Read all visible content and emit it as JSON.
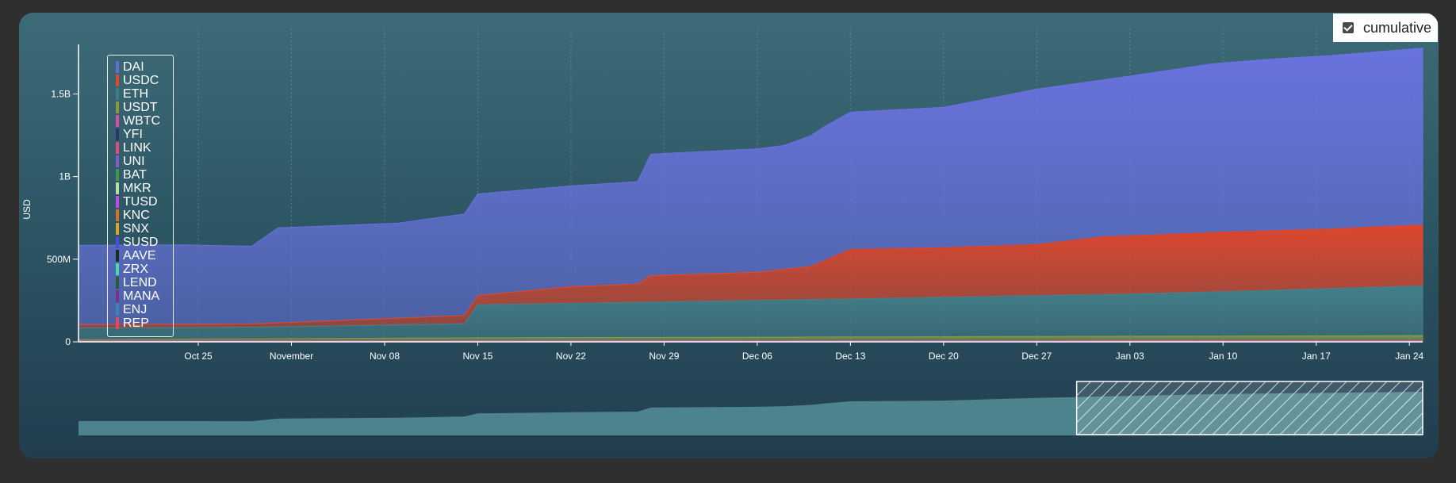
{
  "controls": {
    "cumulative_label": "cumulative",
    "cumulative_checked": true
  },
  "colors": {
    "axis": "#ffffff",
    "grid": "#8fb0b8"
  },
  "chart_data": {
    "type": "area",
    "stacked": true,
    "ylabel": "USD",
    "yticks": [
      {
        "value": 0,
        "label": "0"
      },
      {
        "value": 500000000,
        "label": "500M"
      },
      {
        "value": 1000000000,
        "label": "1B"
      },
      {
        "value": 1500000000,
        "label": "1.5B"
      }
    ],
    "ylim": [
      0,
      1800000000
    ],
    "xlim": [
      "2020-10-16",
      "2021-01-25"
    ],
    "xticks": [
      {
        "date": "2020-10-25",
        "label": "Oct 25"
      },
      {
        "date": "2020-11-01",
        "label": "November"
      },
      {
        "date": "2020-11-08",
        "label": "Nov 08"
      },
      {
        "date": "2020-11-15",
        "label": "Nov 15"
      },
      {
        "date": "2020-11-22",
        "label": "Nov 22"
      },
      {
        "date": "2020-11-29",
        "label": "Nov 29"
      },
      {
        "date": "2020-12-06",
        "label": "Dec 06"
      },
      {
        "date": "2020-12-13",
        "label": "Dec 13"
      },
      {
        "date": "2020-12-20",
        "label": "Dec 20"
      },
      {
        "date": "2020-12-27",
        "label": "Dec 27"
      },
      {
        "date": "2021-01-03",
        "label": "Jan 03"
      },
      {
        "date": "2021-01-10",
        "label": "Jan 10"
      },
      {
        "date": "2021-01-17",
        "label": "Jan 17"
      },
      {
        "date": "2021-01-24",
        "label": "Jan 24"
      }
    ],
    "grid": true,
    "legend_position": "top-left",
    "legend": [
      {
        "name": "DAI",
        "color": "#5b6fd6"
      },
      {
        "name": "USDC",
        "color": "#e0482e"
      },
      {
        "name": "ETH",
        "color": "#3f7d86"
      },
      {
        "name": "USDT",
        "color": "#8a9a3a"
      },
      {
        "name": "WBTC",
        "color": "#d44fa8"
      },
      {
        "name": "YFI",
        "color": "#2a3470"
      },
      {
        "name": "LINK",
        "color": "#d8507a"
      },
      {
        "name": "UNI",
        "color": "#7b5fc8"
      },
      {
        "name": "BAT",
        "color": "#3e9a4a"
      },
      {
        "name": "MKR",
        "color": "#b4e0a8"
      },
      {
        "name": "TUSD",
        "color": "#c24ce0"
      },
      {
        "name": "KNC",
        "color": "#c8752e"
      },
      {
        "name": "SNX",
        "color": "#d6a62c"
      },
      {
        "name": "SUSD",
        "color": "#4c4fd6"
      },
      {
        "name": "AAVE",
        "color": "#1c2a2a"
      },
      {
        "name": "ZRX",
        "color": "#4ad6b8"
      },
      {
        "name": "LEND",
        "color": "#2d5a3a"
      },
      {
        "name": "MANA",
        "color": "#7a2f8a"
      },
      {
        "name": "ENJ",
        "color": "#3a84b8"
      },
      {
        "name": "REP",
        "color": "#e04a5e"
      }
    ],
    "series": [
      {
        "name": "DAI",
        "color": "#6a72e0",
        "x": [
          "2020-10-16",
          "2020-10-24",
          "2020-10-29",
          "2020-10-31",
          "2020-11-09",
          "2020-11-14",
          "2020-11-22",
          "2020-11-27",
          "2020-11-28",
          "2020-12-08",
          "2020-12-11",
          "2020-12-13",
          "2020-12-20",
          "2020-12-27",
          "2021-01-01",
          "2021-01-09",
          "2021-01-14",
          "2021-01-18",
          "2021-01-25"
        ],
        "values": [
          480000000,
          480000000,
          470000000,
          575000000,
          575000000,
          615000000,
          610000000,
          620000000,
          735000000,
          750000000,
          810000000,
          830000000,
          850000000,
          940000000,
          950000000,
          1020000000,
          1040000000,
          1050000000,
          1070000000
        ]
      },
      {
        "name": "USDC",
        "color": "#e0462c",
        "x": [
          "2020-10-16",
          "2020-10-29",
          "2020-11-14",
          "2020-11-22",
          "2020-11-27",
          "2020-11-28",
          "2020-12-06",
          "2020-12-10",
          "2020-12-13",
          "2020-12-20",
          "2020-12-27",
          "2021-01-01",
          "2021-01-10",
          "2021-01-18",
          "2021-01-25"
        ],
        "values": [
          20000000,
          20000000,
          50000000,
          100000000,
          110000000,
          160000000,
          170000000,
          200000000,
          300000000,
          300000000,
          310000000,
          350000000,
          360000000,
          360000000,
          370000000
        ]
      },
      {
        "name": "ETH",
        "color": "#44808a",
        "x": [
          "2020-10-16",
          "2020-10-29",
          "2020-11-14",
          "2020-11-15",
          "2020-12-13",
          "2021-01-03",
          "2021-01-25"
        ],
        "values": [
          70000000,
          70000000,
          85000000,
          200000000,
          230000000,
          255000000,
          300000000
        ]
      },
      {
        "name": "USDT",
        "color": "#7e9a46",
        "x": [
          "2020-10-16",
          "2020-10-29",
          "2020-11-15",
          "2021-01-25"
        ],
        "values": [
          8000000,
          12000000,
          18000000,
          30000000
        ]
      },
      {
        "name": "WBTC",
        "color": "#d44fa8",
        "x": [
          "2020-10-16",
          "2021-01-25"
        ],
        "values": [
          6000000,
          8000000
        ]
      }
    ],
    "brush": {
      "start": "2020-12-30",
      "end": "2021-01-25"
    }
  }
}
